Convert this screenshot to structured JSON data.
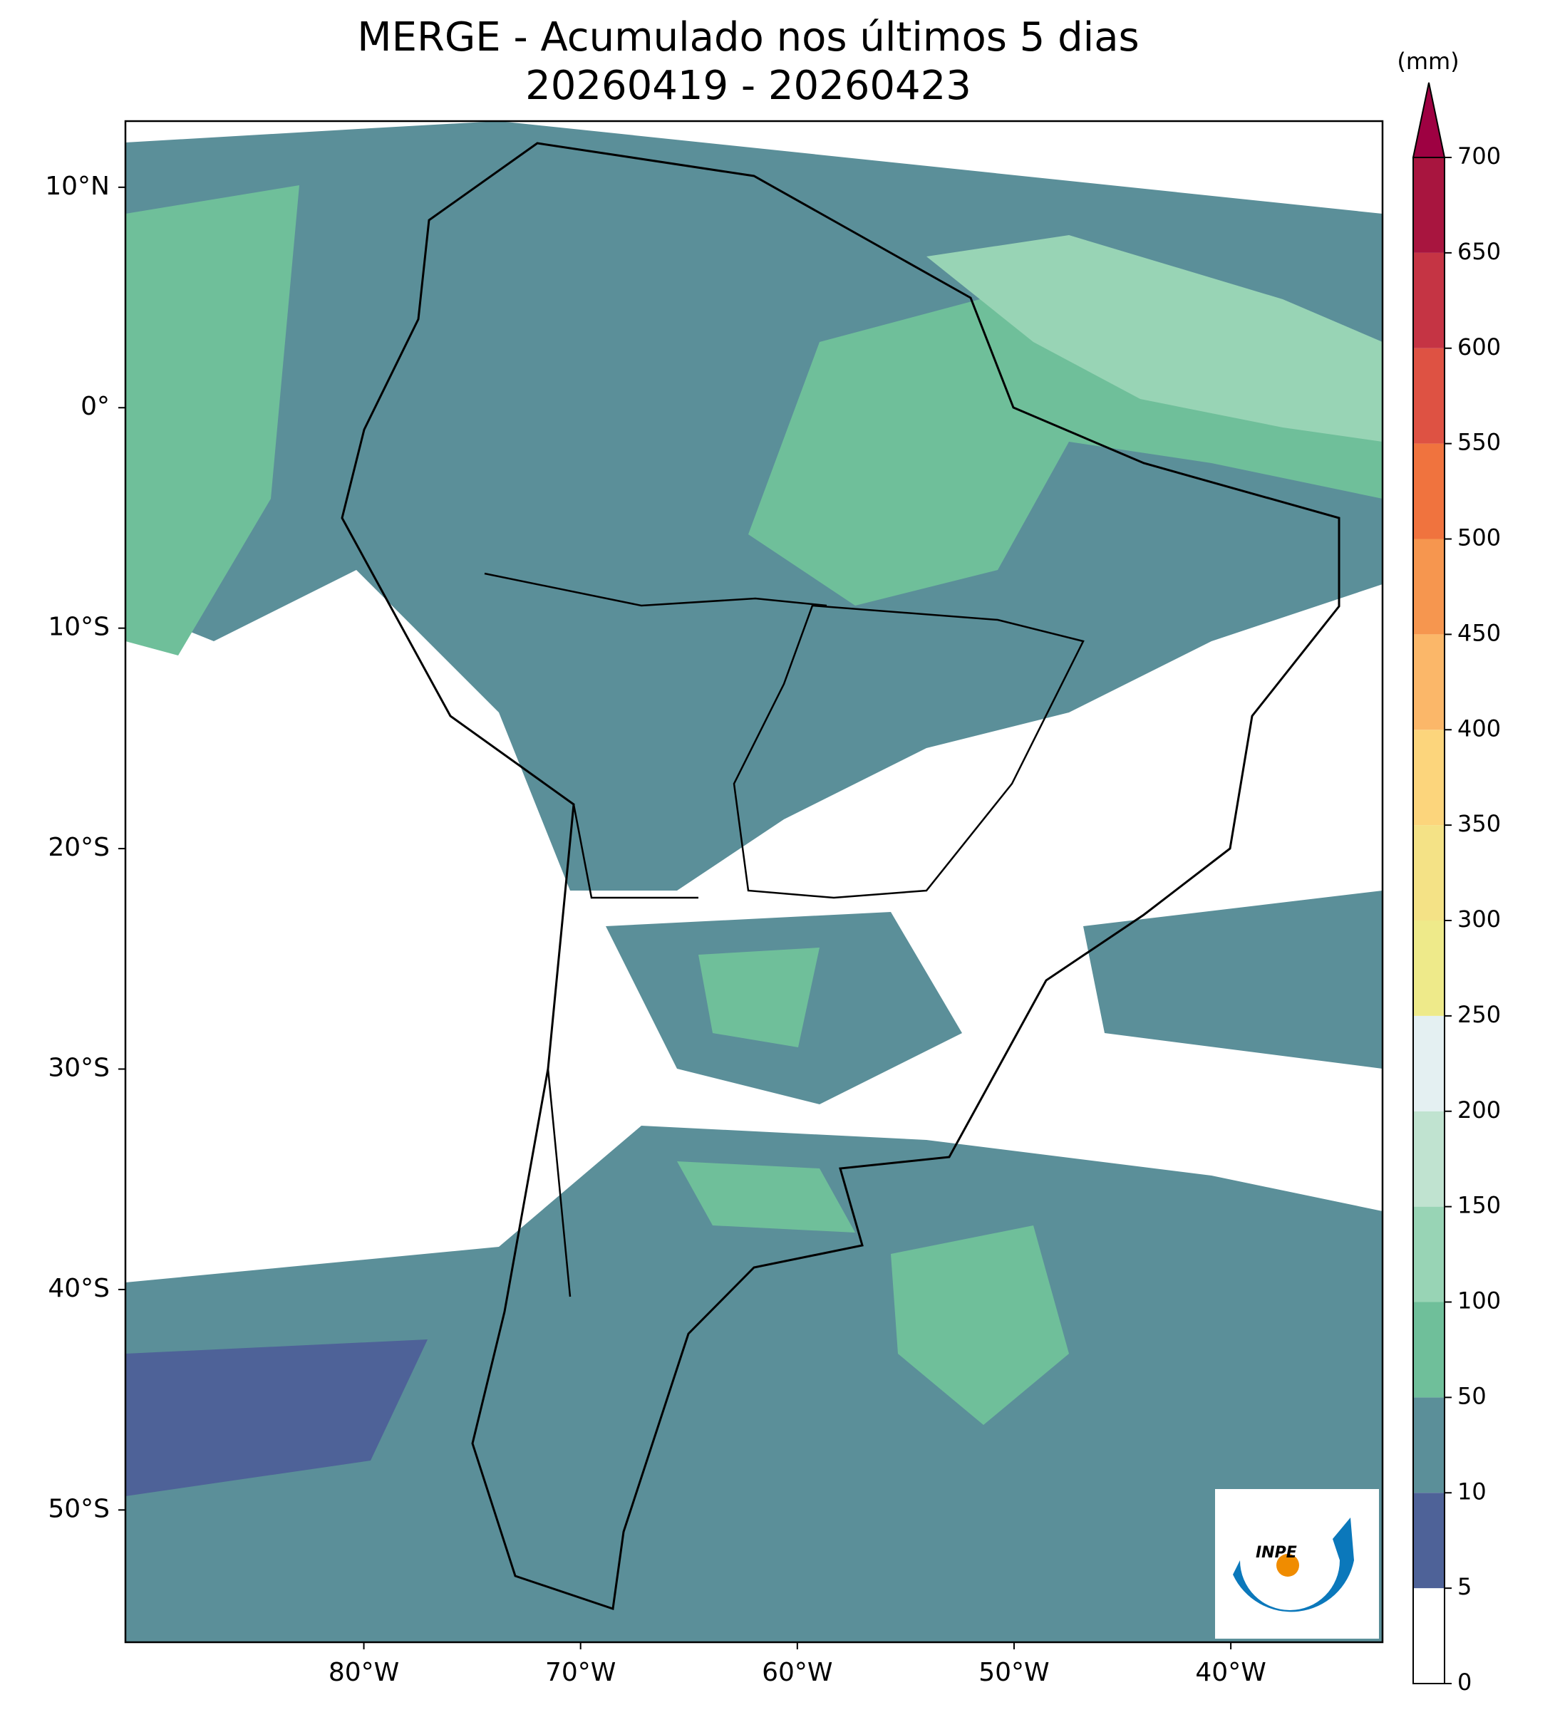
{
  "title": "MERGE - Acumulado nos últimos 5 dias",
  "subtitle": "20260419 - 20260423",
  "axes": {
    "xlim": [
      -91,
      -33
    ],
    "ylim": [
      -56,
      13
    ],
    "xticks": [
      {
        "value": -80,
        "label": "80°W"
      },
      {
        "value": -70,
        "label": "70°W"
      },
      {
        "value": -60,
        "label": "60°W"
      },
      {
        "value": -50,
        "label": "50°W"
      },
      {
        "value": -40,
        "label": "40°W"
      }
    ],
    "yticks": [
      {
        "value": 10,
        "label": "10°N"
      },
      {
        "value": 0,
        "label": "0°"
      },
      {
        "value": -10,
        "label": "10°S"
      },
      {
        "value": -20,
        "label": "20°S"
      },
      {
        "value": -30,
        "label": "30°S"
      },
      {
        "value": -40,
        "label": "40°S"
      },
      {
        "value": -50,
        "label": "50°S"
      }
    ]
  },
  "colorbar": {
    "unit": "(mm)",
    "ticks": [
      0,
      5,
      10,
      50,
      100,
      150,
      200,
      250,
      300,
      350,
      400,
      450,
      500,
      550,
      600,
      650,
      700
    ],
    "colors": [
      "#ffffff",
      "#4e6298",
      "#5b8f99",
      "#6fbf9a",
      "#98d4b5",
      "#c0e3d0",
      "#e4f0f2",
      "#eeea8a",
      "#f4e286",
      "#fcd57c",
      "#fbb769",
      "#f6964f",
      "#f0733e",
      "#de5243",
      "#c53444",
      "#a8153f"
    ],
    "extend_color": "#9e0142"
  },
  "logo": {
    "text": "INPE"
  }
}
